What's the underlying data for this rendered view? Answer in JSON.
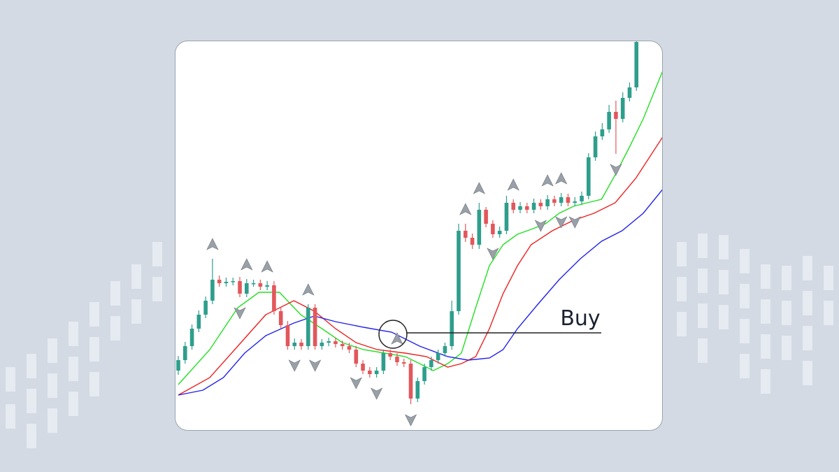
{
  "chart_data": {
    "type": "candlestick",
    "annotation": "Buy",
    "open": [
      86,
      101,
      121,
      146,
      166,
      186,
      216,
      211,
      213,
      214,
      196,
      211,
      211,
      206,
      208,
      171,
      151,
      121,
      126,
      121,
      176,
      121,
      126,
      128,
      124,
      121,
      116,
      96,
      86,
      81,
      86,
      111,
      106,
      98,
      96,
      46,
      71,
      91,
      101,
      111,
      121,
      171,
      286,
      276,
      266,
      316,
      296,
      281,
      286,
      326,
      316,
      321,
      316,
      326,
      321,
      331,
      326,
      334,
      326,
      328,
      336,
      391,
      421,
      431,
      456,
      446,
      476,
      491
    ],
    "high": [
      107,
      127,
      152,
      172,
      192,
      246,
      222,
      219,
      219,
      220,
      217,
      216,
      216,
      214,
      214,
      177,
      157,
      132,
      131,
      181,
      181,
      131,
      133,
      133,
      129,
      126,
      121,
      101,
      91,
      91,
      116,
      116,
      111,
      103,
      101,
      76,
      96,
      106,
      116,
      126,
      186,
      296,
      296,
      282,
      326,
      320,
      301,
      292,
      336,
      331,
      327,
      326,
      332,
      331,
      337,
      336,
      340,
      339,
      334,
      342,
      397,
      428,
      440,
      466,
      472,
      484,
      498,
      560
    ],
    "low": [
      80,
      96,
      116,
      141,
      161,
      181,
      206,
      206,
      208,
      191,
      191,
      206,
      201,
      201,
      166,
      146,
      116,
      116,
      116,
      116,
      116,
      116,
      121,
      119,
      116,
      111,
      91,
      81,
      76,
      76,
      81,
      101,
      93,
      91,
      38,
      41,
      66,
      86,
      96,
      106,
      116,
      166,
      270,
      260,
      260,
      291,
      276,
      276,
      281,
      311,
      311,
      311,
      311,
      316,
      316,
      321,
      321,
      321,
      321,
      323,
      331,
      386,
      416,
      426,
      396,
      441,
      471,
      486
    ],
    "close": [
      101,
      121,
      146,
      166,
      186,
      216,
      211,
      213,
      214,
      196,
      211,
      211,
      206,
      208,
      171,
      151,
      121,
      126,
      121,
      176,
      121,
      126,
      128,
      124,
      121,
      116,
      96,
      86,
      81,
      86,
      111,
      106,
      98,
      96,
      46,
      71,
      91,
      101,
      111,
      121,
      171,
      286,
      276,
      266,
      316,
      296,
      281,
      286,
      326,
      316,
      321,
      316,
      326,
      321,
      331,
      326,
      334,
      326,
      328,
      336,
      391,
      421,
      431,
      456,
      446,
      476,
      491,
      556
    ],
    "colors": {
      "up": "#2e9e8c",
      "down": "#e2575b"
    },
    "signals_up": [
      5,
      10,
      13,
      19,
      32,
      42,
      44,
      49,
      54,
      56
    ],
    "signals_down": [
      9,
      17,
      20,
      26,
      29,
      34,
      46,
      53,
      56,
      58,
      64
    ],
    "series": [
      {
        "color": "#22e022",
        "x": [
          0,
          4.6,
          8.7,
          11.8,
          14.8,
          17.9,
          21,
          24,
          27.1,
          30.2,
          33.2,
          35.3,
          37.3,
          39.4,
          41.4,
          43.5,
          45.5,
          47.5,
          49.6,
          51.6,
          53.7,
          55.7,
          57.8,
          59.8,
          61.9,
          63.9,
          66,
          68,
          70.9
        ],
        "values": [
          66,
          116,
          176,
          198,
          198,
          166,
          146,
          126,
          116,
          111,
          106,
          96,
          86,
          96,
          111,
          176,
          236,
          266,
          281,
          288,
          296,
          311,
          321,
          326,
          331,
          366,
          406,
          446,
          516
        ]
      },
      {
        "color": "#ee2020",
        "x": [
          0,
          4.6,
          8.7,
          12.8,
          16.9,
          19.9,
          23,
          26,
          29.1,
          33.2,
          36.3,
          39.4,
          41.4,
          43.5,
          45.5,
          47.5,
          49.6,
          51.6,
          54.7,
          57.8,
          60.8,
          63.9,
          66.9,
          70.9
        ],
        "values": [
          51,
          76,
          121,
          166,
          186,
          171,
          146,
          126,
          116,
          111,
          106,
          91,
          96,
          106,
          146,
          196,
          236,
          266,
          286,
          301,
          311,
          326,
          361,
          421
        ]
      },
      {
        "color": "#2222ee",
        "x": [
          0,
          3.6,
          6.6,
          9.7,
          12.8,
          16.9,
          19.9,
          23,
          27.1,
          31.2,
          35.3,
          39.4,
          42.4,
          45.5,
          47.5,
          49.6,
          52.6,
          55.7,
          58.8,
          61.9,
          64.9,
          68,
          70.9
        ],
        "values": [
          51,
          58,
          76,
          111,
          136,
          154,
          164,
          156,
          148,
          141,
          121,
          106,
          101,
          104,
          116,
          146,
          181,
          216,
          246,
          271,
          286,
          311,
          346
        ]
      }
    ]
  }
}
